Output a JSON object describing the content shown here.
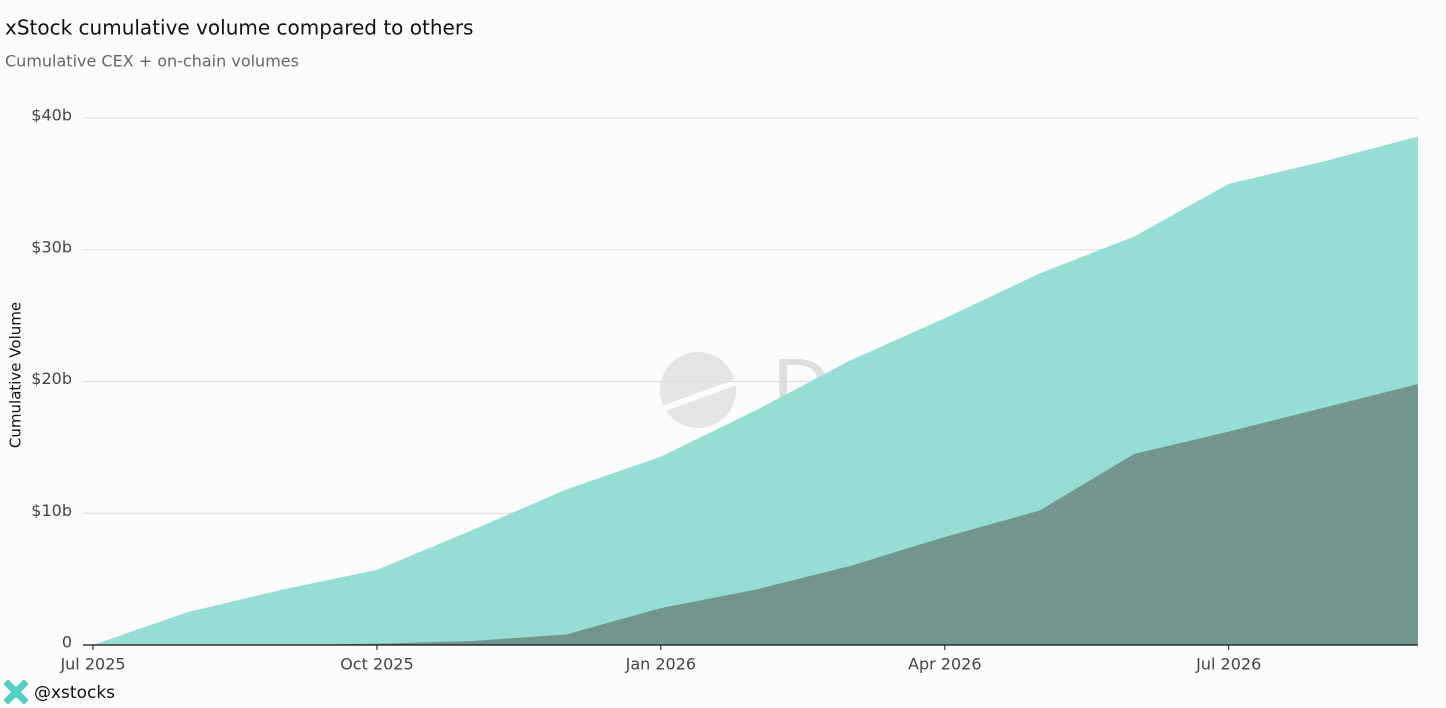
{
  "chart_data": {
    "type": "area",
    "title": "xStock cumulative volume compared to others",
    "subtitle": "Cumulative CEX + on-chain volumes",
    "y_label": "Cumulative Volume",
    "watermark": "Dune",
    "footer": "@xstocks",
    "x": [
      "2025-07",
      "2025-08",
      "2025-09",
      "2025-10",
      "2025-11",
      "2025-12",
      "2026-01",
      "2026-02",
      "2026-03",
      "2026-04",
      "2026-05",
      "2026-06",
      "2026-07",
      "2026-08",
      "2026-09"
    ],
    "series": [
      {
        "color": "#96ded4",
        "values": [
          0,
          2.5,
          4.2,
          5.7,
          8.7,
          11.8,
          14.3,
          17.8,
          21.6,
          24.8,
          28.2,
          31,
          35,
          36.7,
          38.6
        ]
      },
      {
        "color": "#72968f",
        "values": [
          0,
          0,
          0,
          0.1,
          0.3,
          0.8,
          2.8,
          4.2,
          6,
          8.2,
          10.2,
          14.5,
          16.2,
          18,
          19.8
        ]
      }
    ],
    "xlim": [
      "2025-07",
      "2026-09"
    ],
    "xticks": [
      {
        "value": "2025-07",
        "label": "Jul 2025"
      },
      {
        "value": "2025-10",
        "label": "Oct 2025"
      },
      {
        "value": "2026-01",
        "label": "Jan 2026"
      },
      {
        "value": "2026-04",
        "label": "Apr 2026"
      },
      {
        "value": "2026-07",
        "label": "Jul 2026"
      }
    ],
    "ylim": [
      0,
      42
    ],
    "yticks": [
      0,
      {
        "value": 10,
        "label": "$10b"
      },
      {
        "value": 20,
        "label": "$20b"
      },
      {
        "value": 30,
        "label": "$30b"
      },
      {
        "value": 40,
        "label": "$40b"
      }
    ],
    "grid": true
  }
}
